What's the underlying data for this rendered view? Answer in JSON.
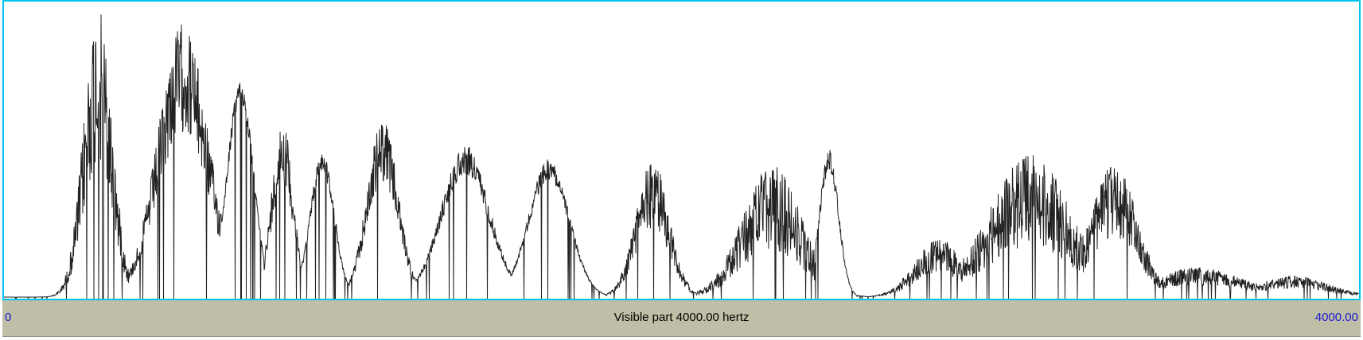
{
  "spectrum": {
    "visible_part_label": "Visible part 4000.00 hertz",
    "freq_min_label": "0",
    "freq_max_label": "4000.00",
    "freq_min": 0,
    "freq_max": 4000,
    "line_color": "#222222",
    "frame_color": "#00c4ee",
    "bar_color": "#bfbea6",
    "value_color": "#1a1ad0",
    "envelope_peaks_hz": [
      275,
      535,
      700,
      830,
      935,
      1125,
      1365,
      1615,
      1920,
      2260,
      2440,
      2710,
      3030,
      3290
    ]
  }
}
